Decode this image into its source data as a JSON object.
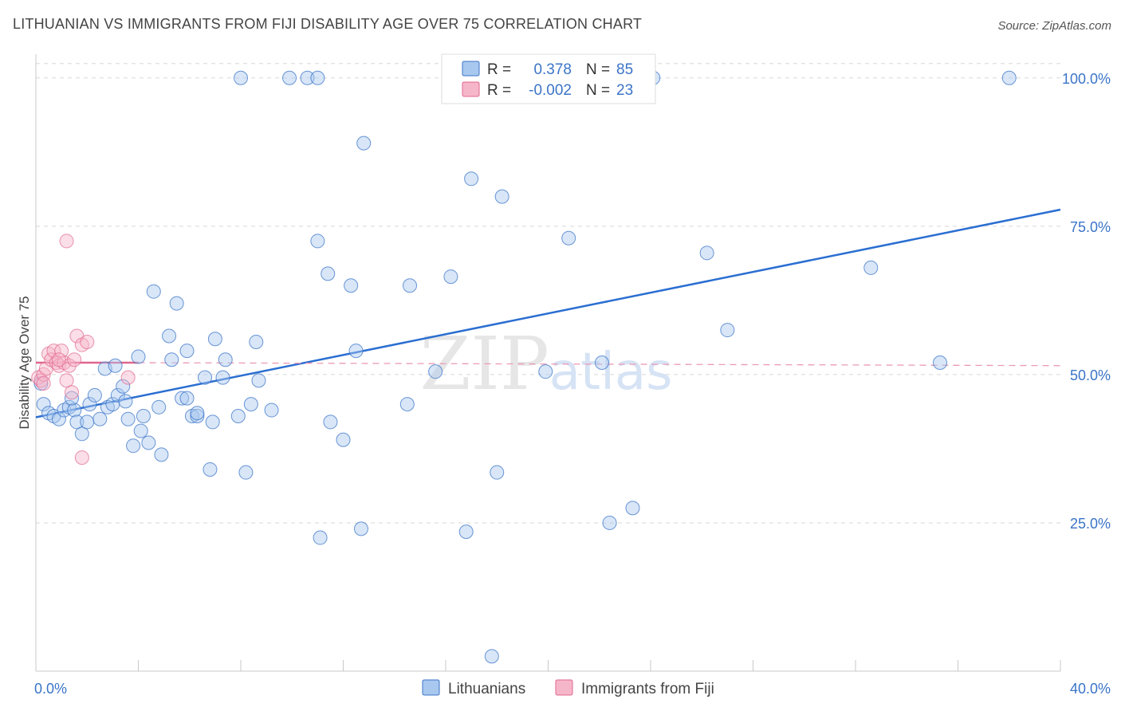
{
  "title": "LITHUANIAN VS IMMIGRANTS FROM FIJI DISABILITY AGE OVER 75 CORRELATION CHART",
  "source": "Source: ZipAtlas.com",
  "colors": {
    "blue": "#3b74c7",
    "blue_fill": "#a9c8ef",
    "blue_line": "#2a6ed1",
    "pink": "#e0668e",
    "pink_fill": "#f6b6c9",
    "grid": "#d8d8d8",
    "axis": "#c9c9c9"
  },
  "chart_data": {
    "type": "scatter",
    "title": "LITHUANIAN VS IMMIGRANTS FROM FIJI DISABILITY AGE OVER 75 CORRELATION CHART",
    "xlabel": "",
    "ylabel": "Disability Age Over 75",
    "xlim": [
      0,
      40
    ],
    "ylim": [
      0,
      104
    ],
    "x_tick_labels": [
      "0.0%",
      "40.0%"
    ],
    "y_ticks": [
      25,
      50,
      75,
      100
    ],
    "y_tick_labels": [
      "25.0%",
      "50.0%",
      "75.0%",
      "100.0%"
    ],
    "grid": true,
    "watermark": "ZIPatlas",
    "legend_stats": [
      {
        "series": "Lithuanians",
        "r_label": "R =",
        "r_value": "0.378",
        "n_label": "N =",
        "n_value": "85"
      },
      {
        "series": "Immigrants from Fiji",
        "r_label": "R =",
        "r_value": "-0.002",
        "n_label": "N =",
        "n_value": "23"
      }
    ],
    "series": [
      {
        "name": "Lithuanians",
        "trend": {
          "x": [
            0,
            40
          ],
          "y": [
            42.8,
            77.8
          ]
        },
        "points": [
          [
            0.2,
            48.5
          ],
          [
            0.3,
            45.0
          ],
          [
            0.5,
            43.5
          ],
          [
            0.7,
            43.0
          ],
          [
            0.9,
            42.5
          ],
          [
            1.1,
            44.0
          ],
          [
            1.3,
            44.5
          ],
          [
            1.5,
            44.0
          ],
          [
            1.4,
            46.0
          ],
          [
            1.6,
            42.0
          ],
          [
            1.8,
            40.0
          ],
          [
            2.0,
            42.0
          ],
          [
            2.1,
            45.0
          ],
          [
            2.3,
            46.5
          ],
          [
            2.5,
            42.5
          ],
          [
            2.7,
            51.0
          ],
          [
            2.8,
            44.5
          ],
          [
            3.0,
            45.0
          ],
          [
            3.1,
            51.5
          ],
          [
            3.2,
            46.5
          ],
          [
            3.4,
            48.0
          ],
          [
            3.5,
            45.5
          ],
          [
            3.6,
            42.5
          ],
          [
            3.8,
            38.0
          ],
          [
            4.0,
            53.0
          ],
          [
            4.1,
            40.5
          ],
          [
            4.2,
            43.0
          ],
          [
            4.4,
            38.5
          ],
          [
            4.6,
            64.0
          ],
          [
            4.8,
            44.5
          ],
          [
            4.9,
            36.5
          ],
          [
            5.2,
            56.5
          ],
          [
            5.3,
            52.5
          ],
          [
            5.5,
            62.0
          ],
          [
            5.7,
            46.0
          ],
          [
            5.9,
            54.0
          ],
          [
            6.1,
            43.0
          ],
          [
            6.3,
            43.0
          ],
          [
            6.6,
            49.5
          ],
          [
            6.8,
            34.0
          ],
          [
            7.0,
            56.0
          ],
          [
            6.9,
            42.0
          ],
          [
            7.3,
            49.5
          ],
          [
            7.4,
            52.5
          ],
          [
            7.9,
            43.0
          ],
          [
            8.2,
            33.5
          ],
          [
            8.4,
            45.0
          ],
          [
            8.6,
            55.5
          ],
          [
            8.7,
            49.0
          ],
          [
            9.2,
            44.0
          ],
          [
            9.9,
            100.0
          ],
          [
            10.6,
            100.0
          ],
          [
            11.0,
            72.5
          ],
          [
            11.4,
            67.0
          ],
          [
            11.5,
            42.0
          ],
          [
            12.0,
            39.0
          ],
          [
            12.3,
            65.0
          ],
          [
            12.5,
            54.0
          ],
          [
            12.7,
            24.0
          ],
          [
            11.1,
            22.5
          ],
          [
            12.8,
            89.0
          ],
          [
            14.5,
            45.0
          ],
          [
            14.6,
            65.0
          ],
          [
            15.6,
            50.5
          ],
          [
            16.2,
            66.5
          ],
          [
            17.0,
            83.0
          ],
          [
            16.8,
            23.5
          ],
          [
            17.8,
            2.5
          ],
          [
            18.2,
            80.0
          ],
          [
            18.0,
            33.5
          ],
          [
            19.9,
            50.5
          ],
          [
            20.8,
            73.0
          ],
          [
            22.1,
            52.0
          ],
          [
            22.4,
            25.0
          ],
          [
            23.3,
            27.5
          ],
          [
            24.1,
            100.0
          ],
          [
            26.2,
            70.5
          ],
          [
            27.0,
            57.5
          ],
          [
            32.6,
            68.0
          ],
          [
            35.3,
            52.0
          ],
          [
            38.0,
            100.0
          ],
          [
            6.3,
            43.5
          ],
          [
            8.0,
            100.0
          ],
          [
            11.0,
            100.0
          ],
          [
            5.9,
            46.0
          ]
        ]
      },
      {
        "name": "Immigrants from Fiji",
        "trend": {
          "x": [
            0,
            4
          ],
          "y": [
            52.0,
            52.0
          ],
          "dashed_extension_x": [
            4,
            40
          ],
          "dashed_extension_y": [
            52.0,
            51.5
          ]
        },
        "points": [
          [
            0.1,
            49.5
          ],
          [
            0.2,
            49.0
          ],
          [
            0.3,
            50.0
          ],
          [
            0.4,
            51.0
          ],
          [
            0.5,
            53.5
          ],
          [
            0.6,
            52.5
          ],
          [
            0.7,
            54.0
          ],
          [
            0.8,
            52.0
          ],
          [
            0.9,
            51.5
          ],
          [
            1.0,
            54.0
          ],
          [
            1.1,
            52.0
          ],
          [
            1.2,
            49.0
          ],
          [
            1.3,
            51.5
          ],
          [
            1.4,
            47.0
          ],
          [
            1.5,
            52.5
          ],
          [
            1.6,
            56.5
          ],
          [
            1.8,
            55.0
          ],
          [
            2.0,
            55.5
          ],
          [
            1.2,
            72.5
          ],
          [
            1.8,
            36.0
          ],
          [
            3.6,
            49.5
          ],
          [
            0.3,
            48.5
          ],
          [
            0.9,
            52.5
          ]
        ]
      }
    ]
  }
}
